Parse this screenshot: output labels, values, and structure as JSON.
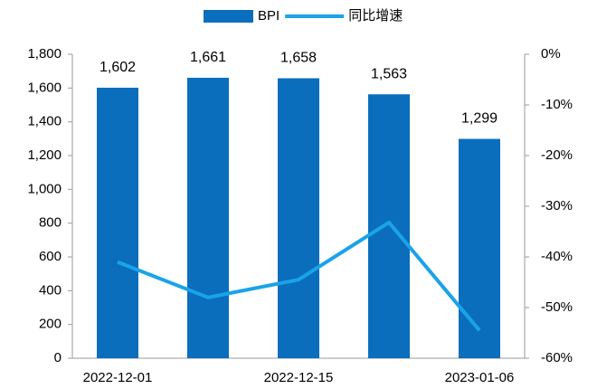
{
  "chart_data": {
    "type": "bar",
    "categories": [
      "2022-12-01",
      null,
      "2022-12-15",
      null,
      "2023-01-06"
    ],
    "series": [
      {
        "name": "BPI",
        "color": "#0a6ebd",
        "values": [
          1602,
          1661,
          1658,
          1563,
          1299
        ],
        "value_labels": [
          "1,602",
          "1,661",
          "1,658",
          "1,563",
          "1,299"
        ]
      },
      {
        "name": "同比增速",
        "color": "#1aa3e8",
        "type": "line",
        "axis": "y2",
        "values": [
          -41,
          -48,
          -44.5,
          -33.2,
          -54.5
        ]
      }
    ],
    "ylim": [
      0,
      1800
    ],
    "yticks": [
      0,
      200,
      400,
      600,
      800,
      {
        "value": 1000,
        "label": "1,000"
      },
      {
        "value": 1200,
        "label": "1,200"
      },
      {
        "value": 1400,
        "label": "1,400"
      },
      {
        "value": 1600,
        "label": "1,600"
      },
      {
        "value": 1800,
        "label": "1,800"
      }
    ],
    "y2lim": [
      -60,
      0
    ],
    "y2ticks": [
      {
        "value": -60,
        "label": "-60%"
      },
      {
        "value": -50,
        "label": "-50%"
      },
      {
        "value": -40,
        "label": "-40%"
      },
      {
        "value": -30,
        "label": "-30%"
      },
      {
        "value": -20,
        "label": "-20%"
      },
      {
        "value": -10,
        "label": "-10%"
      },
      {
        "value": 0,
        "label": "0%"
      }
    ],
    "legend": "top"
  }
}
